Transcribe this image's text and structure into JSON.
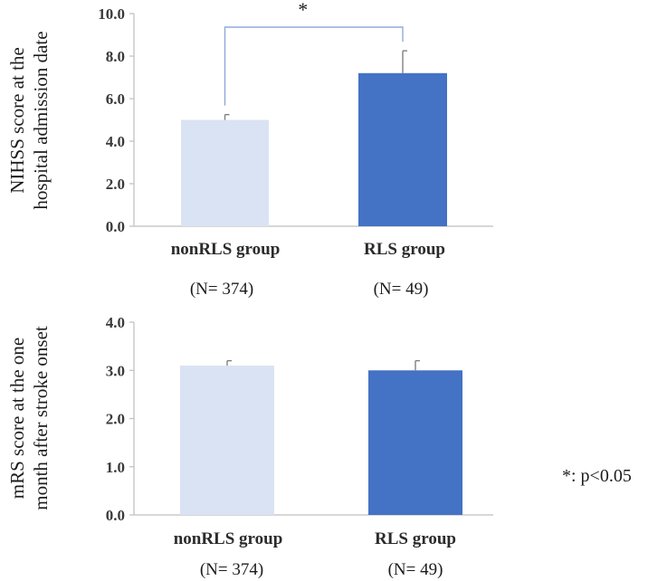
{
  "chart_data": [
    {
      "type": "bar",
      "ylabel_lines": [
        "NIHSS score at the",
        "hospital admission date"
      ],
      "categories": [
        "nonRLS group",
        "RLS group"
      ],
      "category_counts": [
        "(N= 374)",
        "(N= 49)"
      ],
      "values": [
        5.0,
        7.2
      ],
      "error_upper": [
        0.25,
        1.05
      ],
      "bar_colors": [
        "#dae3f3",
        "#4472c4"
      ],
      "ylim": [
        0,
        10
      ],
      "yticks": [
        "0.0",
        "2.0",
        "4.0",
        "6.0",
        "8.0",
        "10.0"
      ],
      "significance_marker": "*",
      "bracket_color": "#8faadc"
    },
    {
      "type": "bar",
      "ylabel_lines": [
        "mRS score at the one",
        "month after stroke onset"
      ],
      "categories": [
        "nonRLS group",
        "RLS group"
      ],
      "category_counts": [
        "(N= 374)",
        "(N= 49)"
      ],
      "values": [
        3.1,
        3.0
      ],
      "error_upper": [
        0.1,
        0.2
      ],
      "bar_colors": [
        "#dae3f3",
        "#4472c4"
      ],
      "ylim": [
        0,
        4
      ],
      "yticks": [
        "0.0",
        "1.0",
        "2.0",
        "3.0",
        "4.0"
      ]
    }
  ],
  "footnote": "*: p<0.05"
}
